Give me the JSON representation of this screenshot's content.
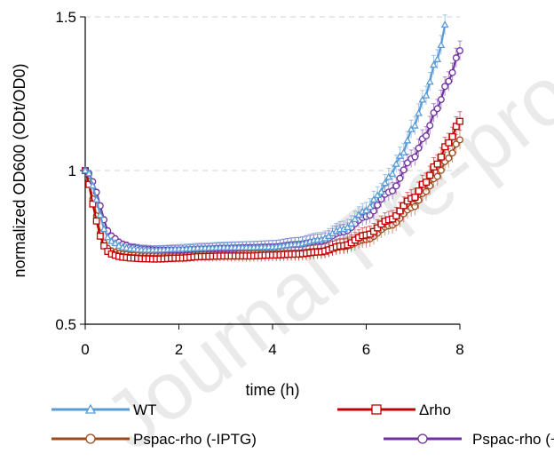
{
  "chart_data": {
    "type": "line",
    "title": "",
    "xlabel": "time (h)",
    "ylabel": "normalized OD600 (ODt/OD0)",
    "xlim": [
      0,
      8
    ],
    "ylim": [
      0.5,
      1.5
    ],
    "x_ticks": [
      "0",
      "2",
      "4",
      "6",
      "8"
    ],
    "y_ticks": [
      "0.5",
      "1",
      "1.5"
    ],
    "grid": "horizontal dashed",
    "legend_position": "bottom",
    "watermark": "Journal Pre-proof",
    "series": [
      {
        "name": "WT",
        "color": "#5b9bd5",
        "marker": "triangle",
        "x": [
          0,
          0.1,
          0.2,
          0.3,
          0.4,
          0.5,
          0.6,
          0.8,
          1.0,
          1.25,
          1.5,
          2.0,
          2.5,
          3.0,
          3.5,
          4.0,
          4.5,
          5.0,
          5.5,
          6.0,
          6.25,
          6.5,
          6.75,
          7.0,
          7.25,
          7.5,
          7.75
        ],
        "y": [
          1.0,
          0.99,
          0.93,
          0.86,
          0.81,
          0.78,
          0.765,
          0.75,
          0.745,
          0.742,
          0.742,
          0.745,
          0.748,
          0.75,
          0.75,
          0.752,
          0.76,
          0.775,
          0.81,
          0.87,
          0.92,
          0.98,
          1.05,
          1.14,
          1.24,
          1.36,
          1.5
        ]
      },
      {
        "name": "Δrho",
        "color": "#c00000",
        "marker": "square",
        "x": [
          0,
          0.1,
          0.2,
          0.3,
          0.4,
          0.5,
          0.6,
          0.8,
          1.0,
          1.25,
          1.5,
          2.0,
          2.5,
          3.0,
          3.5,
          4.0,
          4.5,
          5.0,
          5.5,
          6.0,
          6.5,
          7.0,
          7.25,
          7.5,
          7.75,
          8.0
        ],
        "y": [
          1.0,
          0.95,
          0.86,
          0.79,
          0.755,
          0.735,
          0.725,
          0.718,
          0.715,
          0.713,
          0.712,
          0.715,
          0.72,
          0.722,
          0.722,
          0.725,
          0.728,
          0.735,
          0.755,
          0.79,
          0.84,
          0.91,
          0.96,
          1.02,
          1.09,
          1.16
        ]
      },
      {
        "name": "Pspac-rho (-IPTG)",
        "color": "#9c4a1a",
        "marker": "circle",
        "x": [
          0,
          0.1,
          0.2,
          0.3,
          0.4,
          0.5,
          0.6,
          0.8,
          1.0,
          1.25,
          1.5,
          2.0,
          2.5,
          3.0,
          3.5,
          4.0,
          4.5,
          5.0,
          5.5,
          6.0,
          6.5,
          7.0,
          7.25,
          7.5,
          7.75,
          8.0
        ],
        "y": [
          1.0,
          0.96,
          0.88,
          0.8,
          0.765,
          0.745,
          0.735,
          0.728,
          0.724,
          0.722,
          0.722,
          0.724,
          0.726,
          0.728,
          0.73,
          0.73,
          0.732,
          0.738,
          0.752,
          0.775,
          0.82,
          0.88,
          0.93,
          0.98,
          1.04,
          1.1
        ]
      },
      {
        "name": "Pspac-rho (+IPTG)",
        "color": "#7030a0",
        "marker": "circle",
        "x": [
          0,
          0.1,
          0.2,
          0.3,
          0.4,
          0.5,
          0.6,
          0.8,
          1.0,
          1.25,
          1.5,
          2.0,
          2.5,
          3.0,
          3.5,
          4.0,
          4.5,
          5.0,
          5.5,
          6.0,
          6.5,
          7.0,
          7.25,
          7.5,
          7.75,
          8.0
        ],
        "y": [
          1.0,
          0.99,
          0.95,
          0.89,
          0.84,
          0.8,
          0.78,
          0.76,
          0.75,
          0.745,
          0.742,
          0.742,
          0.745,
          0.748,
          0.75,
          0.752,
          0.76,
          0.77,
          0.8,
          0.85,
          0.93,
          1.04,
          1.11,
          1.2,
          1.29,
          1.39
        ]
      }
    ]
  }
}
